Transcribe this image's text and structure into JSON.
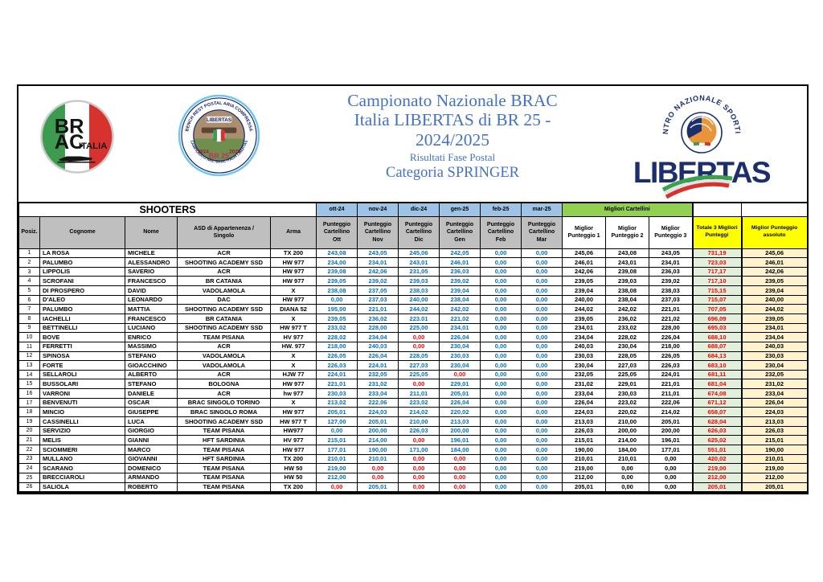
{
  "masthead": {
    "title_line1": "Campionato Nazionale BRAC",
    "title_line2": "Italia LIBERTAS di BR 25 -",
    "title_line3": "2024/2025",
    "subtitle1": "Risultati Fase Postal",
    "subtitle2": "Categoria SPRINGER",
    "brac_logo": {
      "line1": "BR",
      "line2": "AC",
      "italia": "ITALIA"
    },
    "br25_badge": {
      "arc_top": "BENCH REST POSTAL ARIA COMPRESSA",
      "arc_bottom": "CAMPIONATO NAZ. BRAC ITALIA LIBERTAS",
      "libertas": "LIBERTAS",
      "year_left": "2024",
      "year_right": "2025",
      "br25": "BR 25"
    },
    "libertas_logo": {
      "arc": "CENTRO NAZIONALE SPORTIVO",
      "wordmark": "LIBERTAS"
    }
  },
  "colors": {
    "title_blue": "#4472C4",
    "score_blue": "#0070C0",
    "alert_red": "#FF0000",
    "month_header_blue": "#9DC3E6",
    "header_gray": "#BFBFBF",
    "migliori_green": "#92D050",
    "header_yellow": "#FFFF00",
    "total_bg_green": "#E2EFDA",
    "absolute_bg_cream": "#FFF2CC",
    "libertas_navy": "#1B2F6E"
  },
  "table": {
    "shooters_header": "SHOOTERS",
    "months": [
      "ott-24",
      "nov-24",
      "dic-24",
      "gen-25",
      "feb-25",
      "mar-25"
    ],
    "month_subheaders": [
      "Punteggio\nCartellino\nOtt",
      "Punteggio\nCartellino\nNov",
      "Punteggio\nCartellino\nDic",
      "Punteggio\nCartellino\nGen",
      "Punteggio\nCartellino\nFeb",
      "Punteggio\nCartellino\nMar"
    ],
    "left_headers": [
      "Posiz.",
      "Cognome",
      "Nome",
      "ASD di Appartenenza /\nSingolo",
      "Arma"
    ],
    "migliori_header": "Migliori Cartellini",
    "best_headers": [
      "Miglior\nPunteggio 1",
      "Miglior\nPunteggio 2",
      "Miglior\nPunteggio 3"
    ],
    "total_header": "Totale 3 Migliori\nPunteggi",
    "absolute_header": "Miglior Punteggio\nassoluto",
    "rows": [
      {
        "pos": "1",
        "cognome": "LA ROSA",
        "nome": "MICHELE",
        "asd": "ACR",
        "arma": "TX 200",
        "months": [
          "243,08",
          "243,05",
          "245,06",
          "242,05",
          "0,00",
          "0,00"
        ],
        "red_months": [],
        "best": [
          "245,06",
          "243,08",
          "243,05"
        ],
        "total": "731,19",
        "absolute": "245,06"
      },
      {
        "pos": "2",
        "cognome": "PALUMBO",
        "nome": "ALESSANDRO",
        "asd": "SHOOTING ACADEMY SSD",
        "arma": "HW 977",
        "months": [
          "234,00",
          "234,01",
          "243,01",
          "246,01",
          "0,00",
          "0,00"
        ],
        "red_months": [],
        "best": [
          "246,01",
          "243,01",
          "234,01"
        ],
        "total": "723,03",
        "absolute": "246,01"
      },
      {
        "pos": "3",
        "cognome": "LIPPOLIS",
        "nome": "SAVERIO",
        "asd": "ACR",
        "arma": "HW 977",
        "months": [
          "239,08",
          "242,06",
          "231,05",
          "236,03",
          "0,00",
          "0,00"
        ],
        "red_months": [],
        "best": [
          "242,06",
          "239,08",
          "236,03"
        ],
        "total": "717,17",
        "absolute": "242,06"
      },
      {
        "pos": "4",
        "cognome": "SCROFANI",
        "nome": "FRANCESCO",
        "asd": "BR CATANIA",
        "arma": "HW 977",
        "months": [
          "239,05",
          "239,02",
          "239,03",
          "239,02",
          "0,00",
          "0,00"
        ],
        "red_months": [],
        "best": [
          "239,05",
          "239,03",
          "239,02"
        ],
        "total": "717,10",
        "absolute": "239,05"
      },
      {
        "pos": "5",
        "cognome": "DI PROSPERO",
        "nome": "DAVID",
        "asd": "VADOLAMOLA",
        "arma": "X",
        "months": [
          "238,08",
          "237,05",
          "238,03",
          "239,04",
          "0,00",
          "0,00"
        ],
        "red_months": [],
        "best": [
          "239,04",
          "238,08",
          "238,03"
        ],
        "total": "715,15",
        "absolute": "239,04"
      },
      {
        "pos": "6",
        "cognome": "D'ALEO",
        "nome": "LEONARDO",
        "asd": "DAC",
        "arma": "HW 977",
        "months": [
          "0,00",
          "237,03",
          "240,00",
          "238,04",
          "0,00",
          "0,00"
        ],
        "red_months": [],
        "best": [
          "240,00",
          "238,04",
          "237,03"
        ],
        "total": "715,07",
        "absolute": "240,00"
      },
      {
        "pos": "7",
        "cognome": "PALUMBO",
        "nome": "MATTIA",
        "asd": "SHOOTING ACADEMY SSD",
        "arma": "DIANA 52",
        "months": [
          "195,00",
          "221,01",
          "244,02",
          "242,02",
          "0,00",
          "0,00"
        ],
        "red_months": [],
        "best": [
          "244,02",
          "242,02",
          "221,01"
        ],
        "total": "707,05",
        "absolute": "244,02"
      },
      {
        "pos": "8",
        "cognome": "IACHELLI",
        "nome": "FRANCESCO",
        "asd": "BR CATANIA",
        "arma": "X",
        "months": [
          "239,05",
          "236,02",
          "223.01",
          "221,02",
          "0,00",
          "0,00"
        ],
        "red_months": [],
        "best": [
          "239,05",
          "236,02",
          "221,02"
        ],
        "total": "696,09",
        "absolute": "239,05"
      },
      {
        "pos": "9",
        "cognome": "BETTINELLI",
        "nome": "LUCIANO",
        "asd": "SHOOTING ACADEMY SSD",
        "arma": "HW 977 T",
        "months": [
          "233,02",
          "228,00",
          "225,00",
          "234,01",
          "0,00",
          "0,00"
        ],
        "red_months": [],
        "best": [
          "234,01",
          "233,02",
          "228,00"
        ],
        "total": "695,03",
        "absolute": "234,01"
      },
      {
        "pos": "10",
        "cognome": "BOVE",
        "nome": "ENRICO",
        "asd": "TEAM PISANA",
        "arma": "HV 977",
        "months": [
          "228,02",
          "234,04",
          "0,00",
          "226,04",
          "0,00",
          "0,00"
        ],
        "red_months": [
          2
        ],
        "best": [
          "234,04",
          "228,02",
          "226,04"
        ],
        "total": "688,10",
        "absolute": "234,04"
      },
      {
        "pos": "11",
        "cognome": "FERRETTI",
        "nome": "MASSIMO",
        "asd": "ACR",
        "arma": "HW. 977",
        "months": [
          "218,00",
          "240,03",
          "0,00",
          "230,04",
          "0,00",
          "0,00"
        ],
        "red_months": [
          2
        ],
        "best": [
          "240,03",
          "230,04",
          "218,00"
        ],
        "total": "688,07",
        "absolute": "240,03"
      },
      {
        "pos": "12",
        "cognome": "SPINOSA",
        "nome": "STEFANO",
        "asd": "VADOLAMOLA",
        "arma": "X",
        "months": [
          "226,05",
          "226,04",
          "228,05",
          "230,03",
          "0,00",
          "0,00"
        ],
        "red_months": [],
        "best": [
          "230,03",
          "228,05",
          "226,05"
        ],
        "total": "684,13",
        "absolute": "230,03"
      },
      {
        "pos": "13",
        "cognome": "FORTE",
        "nome": "GIOACCHINO",
        "asd": "VADOLAMOLA",
        "arma": "X",
        "months": [
          "226,03",
          "224,01",
          "227,03",
          "230,04",
          "0,00",
          "0,00"
        ],
        "red_months": [],
        "best": [
          "230,04",
          "227,03",
          "226,03"
        ],
        "total": "683,10",
        "absolute": "230,04"
      },
      {
        "pos": "14",
        "cognome": "SELLAROLI",
        "nome": "ALBERTO",
        "asd": "ACR",
        "arma": "HJW 77",
        "months": [
          "224,01",
          "232,05",
          "225,05",
          "0,00",
          "0,00",
          "0,00"
        ],
        "red_months": [
          3
        ],
        "best": [
          "232,05",
          "225,05",
          "224,01"
        ],
        "total": "681,11",
        "absolute": "232,05"
      },
      {
        "pos": "15",
        "cognome": "BUSSOLARI",
        "nome": "STEFANO",
        "asd": "BOLOGNA",
        "arma": "HW 977",
        "months": [
          "221,01",
          "231,02",
          "0,00",
          "229,01",
          "0,00",
          "0,00"
        ],
        "red_months": [
          2
        ],
        "best": [
          "231,02",
          "229,01",
          "221,01"
        ],
        "total": "681,04",
        "absolute": "231,02"
      },
      {
        "pos": "16",
        "cognome": "VARRONI",
        "nome": "DANIELE",
        "asd": "ACR",
        "arma": "hw 977",
        "months": [
          "230,03",
          "233,04",
          "211,01",
          "205,01",
          "0,00",
          "0,00"
        ],
        "red_months": [],
        "best": [
          "233,04",
          "230,03",
          "211,01"
        ],
        "total": "674,08",
        "absolute": "233,04"
      },
      {
        "pos": "17",
        "cognome": "BENVENUTI",
        "nome": "OSCAR",
        "asd": "BRAC SINGOLO TORINO",
        "arma": "X",
        "months": [
          "213,02",
          "222,06",
          "223,02",
          "226,04",
          "0,00",
          "0,00"
        ],
        "red_months": [],
        "best": [
          "226,04",
          "223,02",
          "222,06"
        ],
        "total": "671,12",
        "absolute": "226,04"
      },
      {
        "pos": "18",
        "cognome": "MINCIO",
        "nome": "GIUSEPPE",
        "asd": "BRAC SINGOLO ROMA",
        "arma": "HW 977",
        "months": [
          "205,01",
          "224,03",
          "214,02",
          "220,02",
          "0,00",
          "0,00"
        ],
        "red_months": [],
        "best": [
          "224,03",
          "220,02",
          "214,02"
        ],
        "total": "658,07",
        "absolute": "224,03"
      },
      {
        "pos": "19",
        "cognome": "CASSINELLI",
        "nome": "LUCA",
        "asd": "SHOOTING ACADEMY SSD",
        "arma": "HW 977 T",
        "months": [
          "127,00",
          "205,01",
          "210,00",
          "213,03",
          "0,00",
          "0,00"
        ],
        "red_months": [],
        "best": [
          "213,03",
          "210,00",
          "205,01"
        ],
        "total": "628,04",
        "absolute": "213,03"
      },
      {
        "pos": "20",
        "cognome": "SERVIZIO",
        "nome": "GIORGIO",
        "asd": "TEAM PISANA",
        "arma": "HW977",
        "months": [
          "0,00",
          "200,00",
          "226,03",
          "200,00",
          "0,00",
          "0,00"
        ],
        "red_months": [],
        "best": [
          "226,03",
          "200,00",
          "200,00"
        ],
        "total": "626,03",
        "absolute": "226,03"
      },
      {
        "pos": "21",
        "cognome": "MELIS",
        "nome": "GIANNI",
        "asd": "HFT SARDINIA",
        "arma": "HV 977",
        "months": [
          "215,01",
          "214,00",
          "0,00",
          "196,01",
          "0,00",
          "0,00"
        ],
        "red_months": [
          2
        ],
        "best": [
          "215,01",
          "214,00",
          "196,01"
        ],
        "total": "625,02",
        "absolute": "215,01"
      },
      {
        "pos": "22",
        "cognome": "SCIOMMERI",
        "nome": "MARCO",
        "asd": "TEAM PISANA",
        "arma": "HW 977",
        "months": [
          "177,01",
          "190,00",
          "171,00",
          "184,00",
          "0,00",
          "0,00"
        ],
        "red_months": [],
        "best": [
          "190,00",
          "184,00",
          "177,01"
        ],
        "total": "551,01",
        "absolute": "190,00"
      },
      {
        "pos": "23",
        "cognome": "MULLANO",
        "nome": "GIOVANNI",
        "asd": "HFT SARDINIA",
        "arma": "TX 200",
        "months": [
          "210,01",
          "210,01",
          "0,00",
          "0,00",
          "0,00",
          "0,00"
        ],
        "red_months": [
          2,
          3
        ],
        "best": [
          "210,01",
          "210,01",
          "0,00"
        ],
        "total": "420,02",
        "absolute": "210,01"
      },
      {
        "pos": "24",
        "cognome": "SCARANO",
        "nome": "DOMENICO",
        "asd": "TEAM PISANA",
        "arma": "HW 50",
        "months": [
          "219,00",
          "0,00",
          "0,00",
          "0,00",
          "0,00",
          "0,00"
        ],
        "red_months": [
          1,
          2,
          3
        ],
        "best": [
          "219,00",
          "0,00",
          "0,00"
        ],
        "total": "219,00",
        "absolute": "219,00"
      },
      {
        "pos": "25",
        "cognome": "BRECCIAROLI",
        "nome": "ARMANDO",
        "asd": "TEAM PISANA",
        "arma": "HW 50",
        "months": [
          "212,00",
          "0,00",
          "0,00",
          "0,00",
          "0,00",
          "0,00"
        ],
        "red_months": [
          1,
          2,
          3
        ],
        "best": [
          "212,00",
          "0,00",
          "0,00"
        ],
        "total": "212,00",
        "absolute": "212,00"
      },
      {
        "pos": "26",
        "cognome": "SALIOLA",
        "nome": "ROBERTO",
        "asd": "TEAM PISANA",
        "arma": "TX 200",
        "months": [
          "0,00",
          "205,01",
          "0,00",
          "0,00",
          "0,00",
          "0,00"
        ],
        "red_months": [
          0,
          2,
          3
        ],
        "best": [
          "205,01",
          "0,00",
          "0,00"
        ],
        "total": "205,01",
        "absolute": "205,01"
      }
    ]
  }
}
